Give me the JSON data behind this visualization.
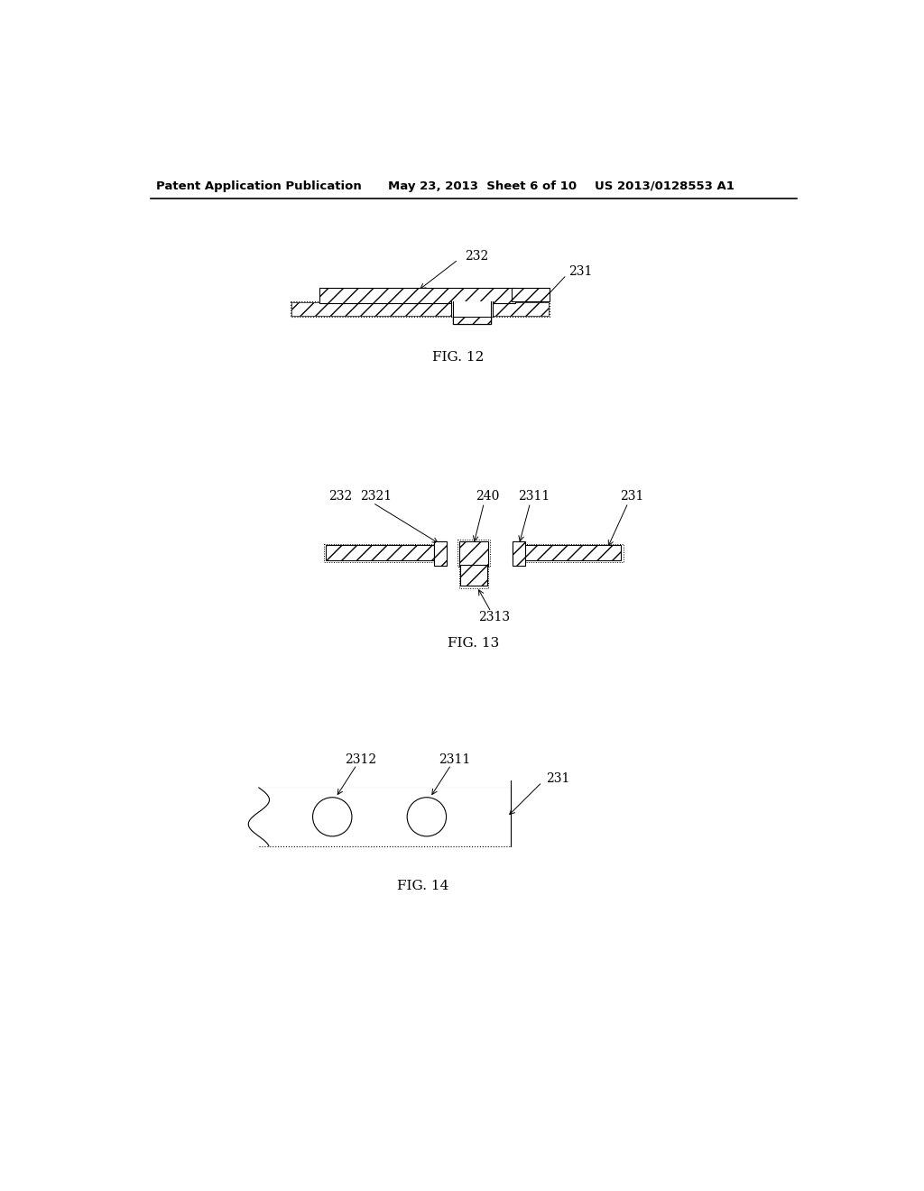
{
  "bg_color": "#ffffff",
  "text_color": "#000000",
  "line_color": "#000000",
  "header_left": "Patent Application Publication",
  "header_center": "May 23, 2013  Sheet 6 of 10",
  "header_right": "US 2013/0128553 A1",
  "fig12_label": "FIG. 12",
  "fig13_label": "FIG. 13",
  "fig14_label": "FIG. 14"
}
